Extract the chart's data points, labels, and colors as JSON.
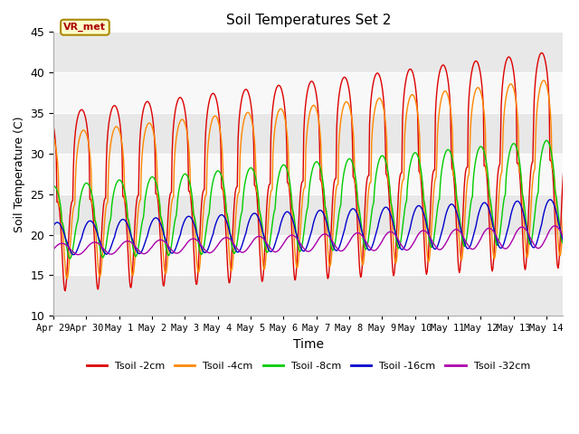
{
  "title": "Soil Temperatures Set 2",
  "xlabel": "Time",
  "ylabel": "Soil Temperature (C)",
  "ylim": [
    10,
    45
  ],
  "annotation": "VR_met",
  "series_colors": [
    "#dd0000",
    "#ff8800",
    "#00cc00",
    "#0000cc",
    "#aa00aa"
  ],
  "series_labels": [
    "Tsoil -2cm",
    "Tsoil -4cm",
    "Tsoil -8cm",
    "Tsoil -16cm",
    "Tsoil -32cm"
  ],
  "tick_labels": [
    "Apr 29",
    "Apr 30",
    "May 1",
    "May 2",
    "May 3",
    "May 4",
    "May 5",
    "May 6",
    "May 7",
    "May 8",
    "May 9",
    "May 10",
    "May 11",
    "May 12",
    "May 13",
    "May 14"
  ],
  "tick_positions": [
    0,
    1,
    2,
    3,
    4,
    5,
    6,
    7,
    8,
    9,
    10,
    11,
    12,
    13,
    14,
    15
  ],
  "yticks": [
    10,
    15,
    20,
    25,
    30,
    35,
    40,
    45
  ],
  "bg_color": "#ffffff",
  "plot_bg": "#f0f0f0",
  "band_colors": [
    "#e8e8e8",
    "#f8f8f8"
  ]
}
